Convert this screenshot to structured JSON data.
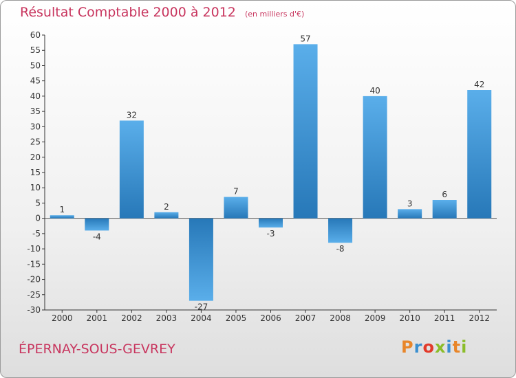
{
  "header": {
    "title": "Résultat Comptable 2000 à 2012",
    "subtitle": "(en milliers d'€)"
  },
  "footer": {
    "town": "ÉPERNAY-SOUS-GEVREY",
    "brand": "Proxiti"
  },
  "colors": {
    "title": "#c8355e",
    "bar_top": "#5aaeea",
    "bar_bottom": "#2778b8",
    "brand": [
      "#e8862a",
      "#3a8fd0",
      "#e23a2a",
      "#8bbd2a",
      "#3a8fd0",
      "#e8862a",
      "#8bbd2a"
    ]
  },
  "chart_data": {
    "type": "bar",
    "title": "Résultat Comptable 2000 à 2012",
    "categories": [
      "2000",
      "2001",
      "2002",
      "2003",
      "2004",
      "2005",
      "2006",
      "2007",
      "2008",
      "2009",
      "2010",
      "2011",
      "2012"
    ],
    "values": [
      1,
      -4,
      32,
      2,
      -27,
      7,
      -3,
      57,
      -8,
      40,
      3,
      6,
      42
    ],
    "ylim": [
      -30,
      60
    ],
    "yticks": [
      -30,
      -25,
      -20,
      -15,
      -10,
      -5,
      0,
      5,
      10,
      15,
      20,
      25,
      30,
      35,
      40,
      45,
      50,
      55,
      60
    ],
    "grid": false,
    "legend": "none"
  }
}
